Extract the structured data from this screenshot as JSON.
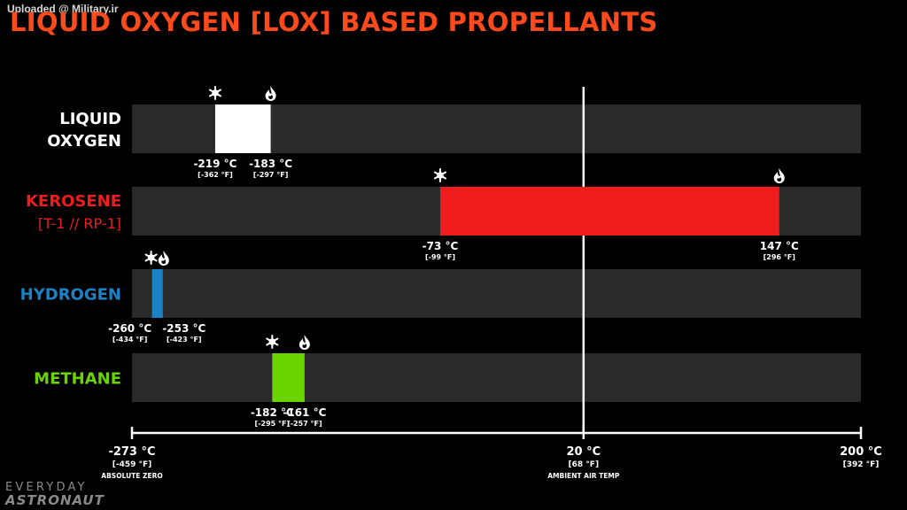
{
  "watermark": "Uploaded @ Military.ir",
  "title": "LIQUID OXYGEN [LOX] BASED PROPELLANTS",
  "logo": {
    "line1": "EVERYDAY",
    "line2": "ASTRONAUT"
  },
  "colors": {
    "title": "#ff4a1c",
    "track": "#2a2a2a",
    "lox": "#ffffff",
    "kerosene": "#ee1c1c",
    "hydrogen": "#1b82c5",
    "methane": "#6ad400",
    "ambient_line": "#ffffff"
  },
  "icons": {
    "freeze": "snowflake-icon",
    "boil": "flame-icon"
  },
  "chart_data": {
    "type": "bar",
    "orientation": "horizontal-range",
    "xlim": [
      -273,
      200
    ],
    "unit": "°C",
    "series": [
      {
        "name_lines": [
          "LIQUID",
          "OXYGEN"
        ],
        "color": "#ffffff",
        "label_color": "#ffffff",
        "freeze_c": -219,
        "freeze_c_label": "-219 °C",
        "freeze_f_label": "[-362 °F]",
        "boil_c": -183,
        "boil_c_label": "-183 °C",
        "boil_f_label": "[-297 °F]"
      },
      {
        "name_lines": [
          "KEROSENE",
          "[T-1 // RP-1]"
        ],
        "color": "#ee1c1c",
        "label_color": "#ee1c1c",
        "freeze_c": -73,
        "freeze_c_label": "-73 °C",
        "freeze_f_label": "[-99 °F]",
        "boil_c": 147,
        "boil_c_label": "147 °C",
        "boil_f_label": "[296 °F]"
      },
      {
        "name_lines": [
          "HYDROGEN"
        ],
        "color": "#1b82c5",
        "label_color": "#1b82c5",
        "freeze_c": -260,
        "freeze_c_label": "-260 °C",
        "freeze_f_label": "[-434 °F]",
        "boil_c": -253,
        "boil_c_label": "-253 °C",
        "boil_f_label": "[-423 °F]"
      },
      {
        "name_lines": [
          "METHANE"
        ],
        "color": "#6ad400",
        "label_color": "#6ad400",
        "freeze_c": -182,
        "freeze_c_label": "-182 °C",
        "freeze_f_label": "[-295 °F]",
        "boil_c": -161,
        "boil_c_label": "-161 °C",
        "boil_f_label": "[-257 °F]"
      }
    ],
    "axis_ticks": [
      {
        "value": -273,
        "c_label": "-273 °C",
        "f_label": "[-459 °F]",
        "note": "ABSOLUTE ZERO"
      },
      {
        "value": 20,
        "c_label": "20 °C",
        "f_label": "[68 °F]",
        "note": "AMBIENT AIR TEMP"
      },
      {
        "value": 200,
        "c_label": "200 °C",
        "f_label": "[392 °F]",
        "note": ""
      }
    ],
    "reference_line": {
      "value": 20
    }
  }
}
